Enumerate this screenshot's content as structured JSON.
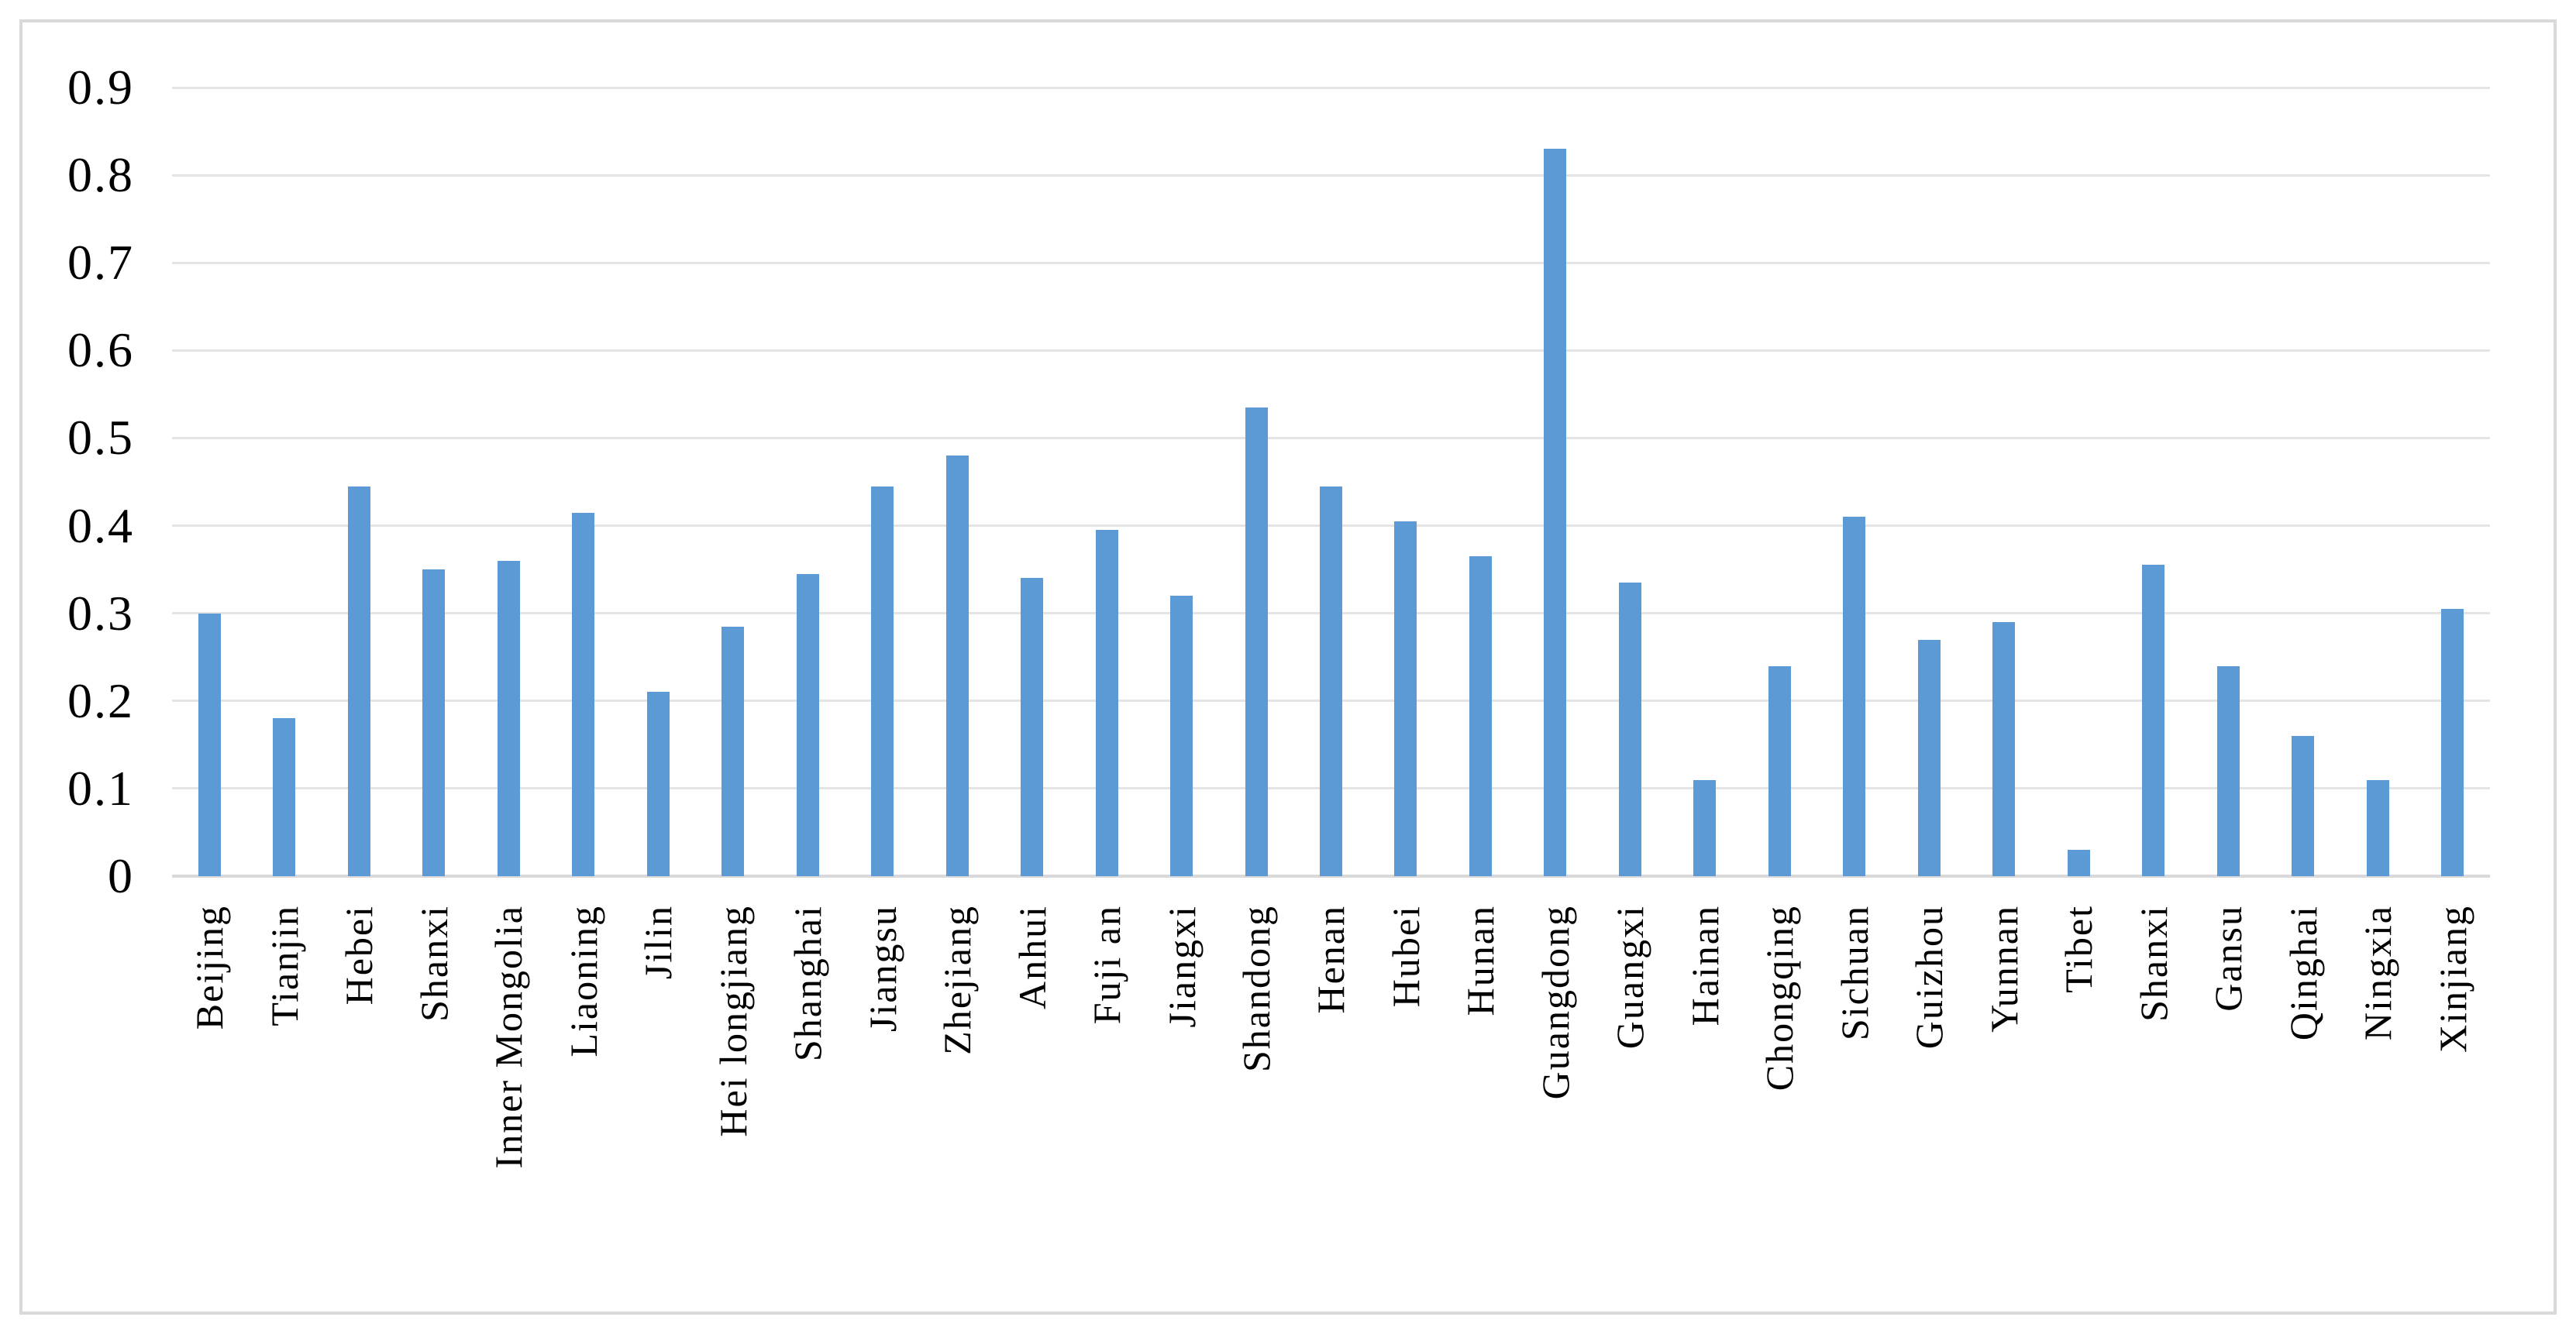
{
  "chart_data": {
    "type": "bar",
    "title": "",
    "xlabel": "",
    "ylabel": "",
    "categories": [
      "Beijing",
      "Tianjin",
      "Hebei",
      "Shanxi",
      "Inner Mongolia",
      "Liaoning",
      "Jilin",
      "Hei longjiang",
      "Shanghai",
      "Jiangsu",
      "Zhejiang",
      "Anhui",
      "Fuji an",
      "Jiangxi",
      "Shandong",
      "Henan",
      "Hubei",
      "Hunan",
      "Guangdong",
      "Guangxi",
      "Hainan",
      "Chongqing",
      "Sichuan",
      "Guizhou",
      "Yunnan",
      "Tibet",
      "Shanxi",
      "Gansu",
      "Qinghai",
      "Ningxia",
      "Xinjiang"
    ],
    "values": [
      0.3,
      0.18,
      0.445,
      0.35,
      0.36,
      0.415,
      0.21,
      0.285,
      0.345,
      0.445,
      0.48,
      0.34,
      0.395,
      0.32,
      0.535,
      0.445,
      0.405,
      0.365,
      0.83,
      0.335,
      0.11,
      0.24,
      0.41,
      0.27,
      0.29,
      0.03,
      0.355,
      0.24,
      0.16,
      0.11,
      0.305
    ],
    "ylim": [
      0,
      0.9
    ],
    "yticks": [
      0,
      0.1,
      0.2,
      0.3,
      0.4,
      0.5,
      0.6,
      0.7,
      0.8,
      0.9
    ],
    "ytick_labels": [
      "0",
      "0.1",
      "0.2",
      "0.3",
      "0.4",
      "0.5",
      "0.6",
      "0.7",
      "0.8",
      "0.9"
    ],
    "grid": true,
    "legend": false,
    "x_label_rotation": "90deg-counterclockwise",
    "colors": {
      "bar": "#5b9ad5",
      "gridline": "#e4e4e4",
      "axis_line": "#d9d9d9",
      "frame_border": "#d9d9d9",
      "text": "#000000",
      "background": "#ffffff"
    }
  }
}
